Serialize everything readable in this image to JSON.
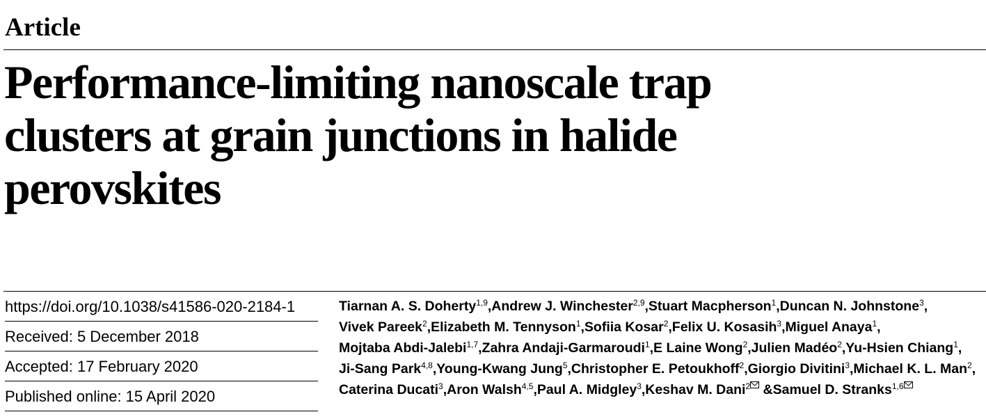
{
  "header": {
    "section": "Article",
    "title_lines": [
      "Performance-limiting nanoscale trap",
      "clusters at grain junctions in halide",
      "perovskites"
    ]
  },
  "metadata": [
    "https://doi.org/10.1038/s41586-020-2184-1",
    "Received: 5 December 2018",
    "Accepted: 17 February 2020",
    "Published online: 15 April 2020"
  ],
  "authors": {
    "separator": ", ",
    "last_separator": " & ",
    "list": [
      {
        "name": "Tiarnan A. S. Doherty",
        "affiliations": "1,9"
      },
      {
        "name": "Andrew J. Winchester",
        "affiliations": "2,9"
      },
      {
        "name": "Stuart Macpherson",
        "affiliations": "1"
      },
      {
        "name": "Duncan N. Johnstone",
        "affiliations": "3"
      },
      {
        "name": "Vivek Pareek",
        "affiliations": "2"
      },
      {
        "name": "Elizabeth M. Tennyson",
        "affiliations": "1"
      },
      {
        "name": "Sofiia Kosar",
        "affiliations": "2"
      },
      {
        "name": "Felix U. Kosasih",
        "affiliations": "3"
      },
      {
        "name": "Miguel Anaya",
        "affiliations": "1"
      },
      {
        "name": "Mojtaba Abdi-Jalebi",
        "affiliations": "1,7"
      },
      {
        "name": "Zahra Andaji-Garmaroudi",
        "affiliations": "1"
      },
      {
        "name": "E Laine Wong",
        "affiliations": "2"
      },
      {
        "name": "Julien Madéo",
        "affiliations": "2"
      },
      {
        "name": "Yu-Hsien Chiang",
        "affiliations": "1"
      },
      {
        "name": "Ji-Sang Park",
        "affiliations": "4,8"
      },
      {
        "name": "Young-Kwang Jung",
        "affiliations": "5"
      },
      {
        "name": "Christopher E. Petoukhoff",
        "affiliations": "2"
      },
      {
        "name": "Giorgio Divitini",
        "affiliations": "3"
      },
      {
        "name": "Michael K. L. Man",
        "affiliations": "2"
      },
      {
        "name": "Caterina Ducati",
        "affiliations": "3"
      },
      {
        "name": "Aron Walsh",
        "affiliations": "4,5"
      },
      {
        "name": "Paul A. Midgley",
        "affiliations": "3"
      },
      {
        "name": "Keshav M. Dani",
        "affiliations": "2",
        "corresponding": true
      },
      {
        "name": "Samuel D. Stranks",
        "affiliations": "1,6",
        "corresponding": true
      }
    ]
  }
}
